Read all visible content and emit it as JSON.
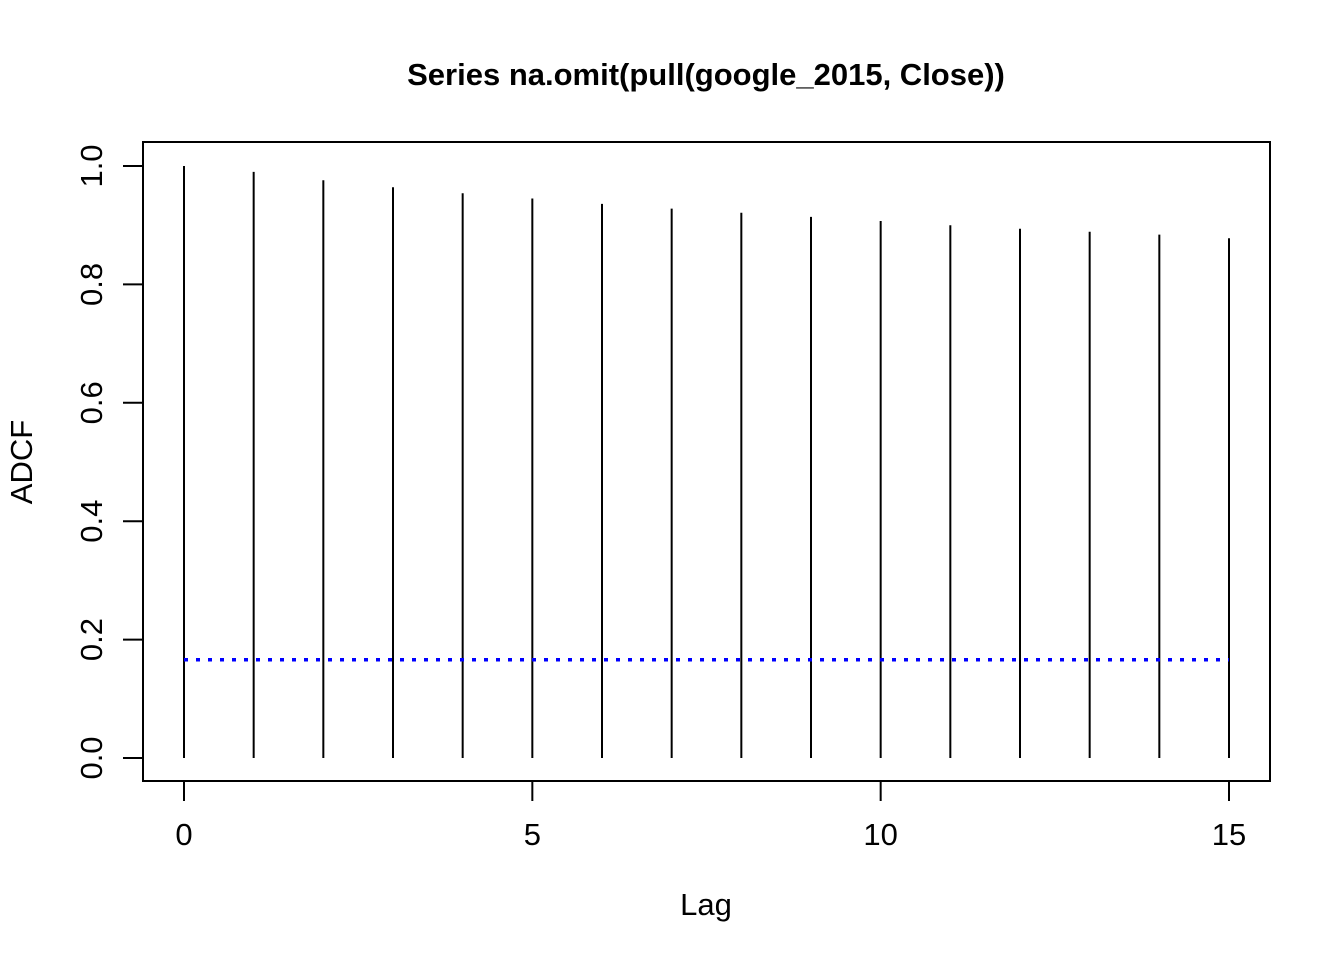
{
  "chart_data": {
    "type": "bar",
    "title": "Series na.omit(pull(google_2015, Close))",
    "xlabel": "Lag",
    "ylabel": "ADCF",
    "x": [
      0,
      1,
      2,
      3,
      4,
      5,
      6,
      7,
      8,
      9,
      10,
      11,
      12,
      13,
      14,
      15
    ],
    "values": [
      1.0,
      0.99,
      0.976,
      0.964,
      0.954,
      0.945,
      0.936,
      0.928,
      0.921,
      0.914,
      0.907,
      0.9,
      0.894,
      0.889,
      0.884,
      0.878
    ],
    "xlim": [
      0,
      15
    ],
    "ylim": [
      0,
      1
    ],
    "xticks": [
      0,
      5,
      10,
      15
    ],
    "yticks": [
      0.0,
      0.2,
      0.4,
      0.6,
      0.8,
      1.0
    ],
    "xtick_labels": [
      "0",
      "5",
      "10",
      "15"
    ],
    "ytick_labels": [
      "0.0",
      "0.2",
      "0.4",
      "0.6",
      "0.8",
      "1.0"
    ],
    "threshold": 0.166,
    "threshold_color": "#0000ff",
    "bar_color": "#000000",
    "grid": false
  }
}
